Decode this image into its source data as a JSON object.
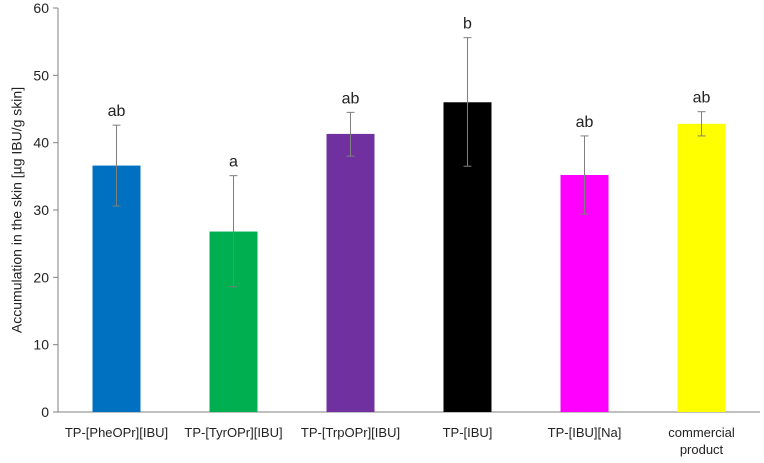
{
  "chart_data": {
    "type": "bar",
    "title": "",
    "xlabel": "",
    "ylabel": "Accumulation in the skin [µg IBU/g skin]",
    "ylim": [
      0,
      60
    ],
    "yticks": [
      0,
      10,
      20,
      30,
      40,
      50,
      60
    ],
    "grid": false,
    "legend": "none",
    "categories": [
      [
        "TP-[PheOPr][IBU]"
      ],
      [
        "TP-[TyrOPr][IBU]"
      ],
      [
        "TP-[TrpOPr][IBU]"
      ],
      [
        "TP-[IBU]"
      ],
      [
        "TP-[IBU][Na]"
      ],
      [
        "commercial",
        "product"
      ]
    ],
    "values": [
      36.6,
      26.8,
      41.3,
      46.0,
      35.2,
      42.8
    ],
    "error_low": [
      30.6,
      18.6,
      38.0,
      36.5,
      29.4,
      41.0
    ],
    "error_high": [
      42.6,
      35.1,
      44.5,
      55.6,
      41.0,
      44.6
    ],
    "significance_labels": [
      "ab",
      "a",
      "ab",
      "b",
      "ab",
      "ab"
    ],
    "colors": [
      "#0070c0",
      "#00b050",
      "#7030a0",
      "#000000",
      "#ff00ff",
      "#ffff00"
    ],
    "error_bar_color": "#7f7f7f"
  }
}
